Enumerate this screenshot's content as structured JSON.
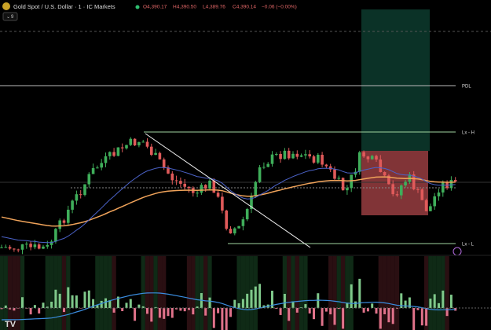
{
  "header": {
    "symbol": "Gold Spot / U.S. Dollar · 1 · IC Markets",
    "open": "O4,390.17",
    "high": "H4,390.50",
    "low": "L4,389.76",
    "close": "C4,390.14",
    "change": "−0.06 (−0.00%)",
    "indicator_count": "9"
  },
  "levels": {
    "pdl": "PDL",
    "lx_high": "Lx - H",
    "lx_low": "Lx - L"
  }
}
